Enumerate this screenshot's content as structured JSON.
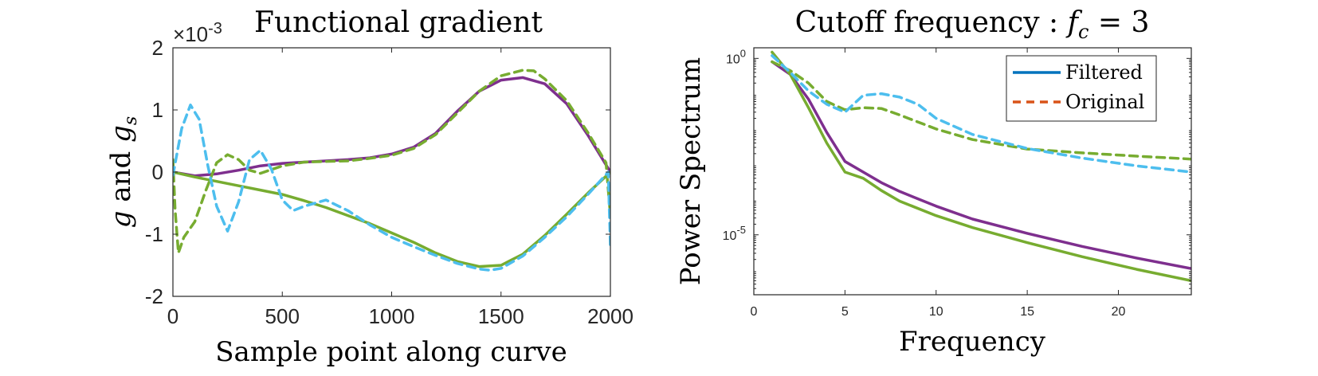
{
  "chart_data": [
    {
      "type": "line",
      "title": "Functional gradient",
      "xlabel": "Sample point along curve",
      "ylabel": "g and g_s",
      "ylabel_parts": {
        "base": "g",
        "mid": " and ",
        "sub_base": "g",
        "sub": "s"
      },
      "exponent_label": "×10",
      "exponent_power": "-3",
      "xlim": [
        0,
        2000
      ],
      "ylim": [
        -2,
        2
      ],
      "x_ticks": [
        "0",
        "500",
        "1000",
        "1500",
        "2000"
      ],
      "y_ticks": [
        "2",
        "1",
        "0",
        "-1",
        "-2"
      ],
      "grid": false,
      "series": [
        {
          "color": "#7E2F8E",
          "style": "solid",
          "x": [
            0,
            100,
            200,
            300,
            400,
            500,
            600,
            700,
            800,
            900,
            1000,
            1100,
            1200,
            1300,
            1400,
            1500,
            1600,
            1700,
            1800,
            1900,
            2000
          ],
          "y": [
            0.0,
            -0.06,
            -0.03,
            0.03,
            0.1,
            0.14,
            0.16,
            0.18,
            0.2,
            0.23,
            0.29,
            0.4,
            0.62,
            0.98,
            1.3,
            1.48,
            1.52,
            1.42,
            1.1,
            0.58,
            0.0
          ]
        },
        {
          "color": "#77AC30",
          "style": "solid",
          "x": [
            0,
            100,
            200,
            300,
            400,
            500,
            600,
            700,
            800,
            900,
            1000,
            1100,
            1200,
            1300,
            1400,
            1500,
            1600,
            1700,
            1800,
            1900,
            2000
          ],
          "y": [
            0.0,
            -0.08,
            -0.15,
            -0.22,
            -0.29,
            -0.36,
            -0.46,
            -0.57,
            -0.7,
            -0.83,
            -0.98,
            -1.13,
            -1.3,
            -1.44,
            -1.52,
            -1.5,
            -1.32,
            -1.02,
            -0.68,
            -0.33,
            0.0
          ]
        },
        {
          "color": "#77AC30",
          "style": "dashed",
          "x": [
            0,
            10,
            25,
            50,
            100,
            150,
            200,
            250,
            300,
            350,
            400,
            500,
            600,
            700,
            800,
            900,
            1000,
            1100,
            1200,
            1300,
            1400,
            1500,
            1600,
            1650,
            1700,
            1800,
            1900,
            1980,
            2000
          ],
          "y": [
            0.2,
            -0.6,
            -1.3,
            -1.05,
            -0.8,
            -0.3,
            0.15,
            0.28,
            0.2,
            0.03,
            -0.02,
            0.1,
            0.16,
            0.17,
            0.18,
            0.22,
            0.27,
            0.38,
            0.6,
            0.95,
            1.3,
            1.55,
            1.64,
            1.63,
            1.5,
            1.15,
            0.62,
            0.15,
            -0.7
          ]
        },
        {
          "color": "#4DBEEE",
          "style": "dashed",
          "x": [
            0,
            40,
            80,
            120,
            160,
            200,
            250,
            300,
            350,
            400,
            450,
            500,
            550,
            600,
            700,
            800,
            900,
            1000,
            1100,
            1200,
            1300,
            1400,
            1450,
            1500,
            1600,
            1700,
            1800,
            1900,
            1990,
            2000
          ],
          "y": [
            -0.05,
            0.7,
            1.08,
            0.85,
            0.1,
            -0.55,
            -0.95,
            -0.48,
            0.2,
            0.35,
            0.05,
            -0.45,
            -0.62,
            -0.55,
            -0.45,
            -0.62,
            -0.85,
            -1.05,
            -1.2,
            -1.34,
            -1.47,
            -1.56,
            -1.58,
            -1.55,
            -1.35,
            -1.05,
            -0.72,
            -0.35,
            0.0,
            -1.2
          ]
        }
      ]
    },
    {
      "type": "line",
      "title": "Cutoff frequency :",
      "title_math": {
        "var": "f",
        "sub": "c",
        "rest": " = 3"
      },
      "xlabel": "Frequency",
      "ylabel": "Power Spectrum",
      "log_y": true,
      "xlim": [
        0,
        24
      ],
      "ylim": [
        2e-07,
        2
      ],
      "x_ticks": [
        "0",
        "5",
        "10",
        "15",
        "20"
      ],
      "y_ticks": [
        {
          "base": "10",
          "exp": "0"
        },
        {
          "base": "10",
          "exp": "-5"
        }
      ],
      "legend_position": "top-right",
      "legend": [
        {
          "label": "Filtered",
          "color": "#0072BD",
          "style": "solid"
        },
        {
          "label": "Original",
          "color": "#D95319",
          "style": "dashed"
        }
      ],
      "grid": false,
      "series": [
        {
          "color": "#7E2F8E",
          "style": "solid",
          "x": [
            1,
            2,
            3,
            4,
            5,
            6,
            7,
            8,
            10,
            12,
            15,
            18,
            21,
            24
          ],
          "y": [
            0.8,
            0.35,
            0.07,
            0.008,
            0.0012,
            0.0006,
            0.0003,
            0.00017,
            6.5e-05,
            2.8e-05,
            1.1e-05,
            4.7e-06,
            2.2e-06,
            1.1e-06
          ]
        },
        {
          "color": "#77AC30",
          "style": "solid",
          "x": [
            1,
            2,
            3,
            4,
            5,
            6,
            7,
            8,
            10,
            12,
            15,
            18,
            21,
            24
          ],
          "y": [
            1.5,
            0.35,
            0.04,
            0.004,
            0.0006,
            0.0004,
            0.00018,
            9e-05,
            3.5e-05,
            1.6e-05,
            6e-06,
            2.4e-06,
            1.05e-06,
            5e-07
          ]
        },
        {
          "color": "#77AC30",
          "style": "dashed",
          "x": [
            1,
            2,
            3,
            4,
            5,
            6,
            7,
            8,
            10,
            12,
            15,
            18,
            21,
            24
          ],
          "y": [
            0.8,
            0.45,
            0.2,
            0.06,
            0.035,
            0.04,
            0.038,
            0.025,
            0.01,
            0.005,
            0.0027,
            0.0021,
            0.0017,
            0.0014
          ]
        },
        {
          "color": "#4DBEEE",
          "style": "dashed",
          "x": [
            1,
            2,
            3,
            4,
            5,
            6,
            7,
            8,
            9,
            10,
            12,
            15,
            18,
            21,
            24
          ],
          "y": [
            1.2,
            0.4,
            0.12,
            0.05,
            0.03,
            0.09,
            0.1,
            0.08,
            0.05,
            0.02,
            0.007,
            0.0028,
            0.0015,
            0.0009,
            0.0006
          ]
        }
      ]
    }
  ]
}
